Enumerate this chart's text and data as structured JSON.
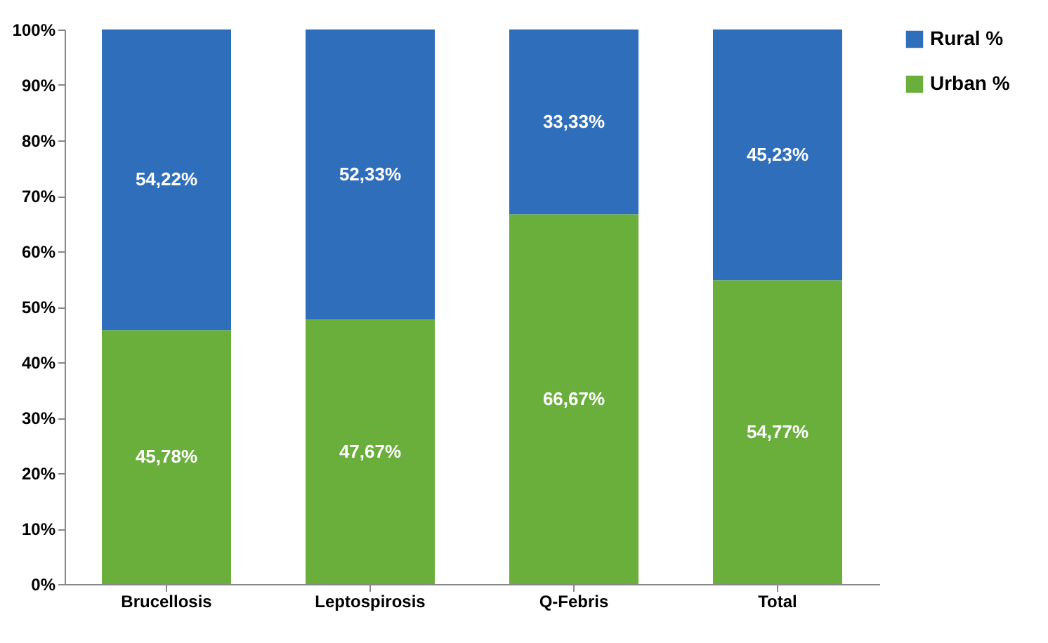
{
  "chart_data": {
    "type": "bar",
    "stacked": true,
    "categories": [
      "Brucellosis",
      "Leptospirosis",
      "Q-Febris",
      "Total"
    ],
    "series": [
      {
        "name": "Urban %",
        "color": "#6aae3c",
        "values": [
          45.78,
          47.67,
          66.67,
          54.77
        ],
        "value_labels": [
          "45,78%",
          "47,67%",
          "66,67%",
          "54,77%"
        ]
      },
      {
        "name": "Rural %",
        "color": "#2f6ebb",
        "values": [
          54.22,
          52.33,
          33.33,
          45.23
        ],
        "value_labels": [
          "54,22%",
          "52,33%",
          "33,33%",
          "45,23%"
        ]
      }
    ],
    "ylim": [
      0,
      100
    ],
    "yticks": [
      {
        "value": 0,
        "label": "0%"
      },
      {
        "value": 10,
        "label": "10%"
      },
      {
        "value": 20,
        "label": "20%"
      },
      {
        "value": 30,
        "label": "30%"
      },
      {
        "value": 40,
        "label": "40%"
      },
      {
        "value": 50,
        "label": "50%"
      },
      {
        "value": 60,
        "label": "60%"
      },
      {
        "value": 70,
        "label": "70%"
      },
      {
        "value": 80,
        "label": "80%"
      },
      {
        "value": 90,
        "label": "90%"
      },
      {
        "value": 100,
        "label": "100%"
      }
    ],
    "grid": false,
    "legend": "right"
  }
}
